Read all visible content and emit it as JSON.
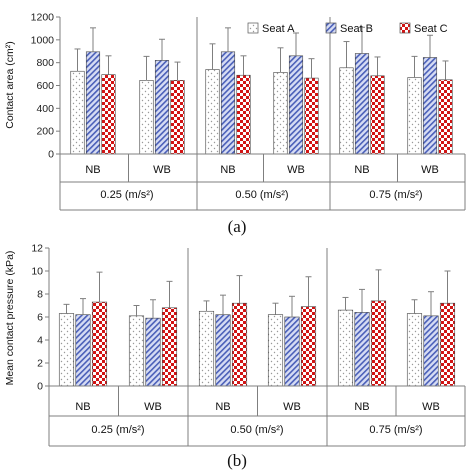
{
  "colors": {
    "seatA_fill": "#ffffff",
    "seatA_dots": "#999999",
    "seatB_fill": "#d6dcf4",
    "seatB_stripe": "#4a5fb8",
    "seatC_fill": "#ffffff",
    "seatC_check": "#d21414",
    "axis": "#7f7f7f",
    "error": "#7f7f7f"
  },
  "chart_data": [
    {
      "type": "bar",
      "panel_label": "(a)",
      "ylabel": "Contact area (cm²)",
      "ylim": [
        0,
        1200
      ],
      "yticks": [
        0,
        200,
        400,
        600,
        800,
        1000,
        1200
      ],
      "legend": [
        "Seat A",
        "Seat B",
        "Seat C"
      ],
      "legend_position": "top-right",
      "groups": [
        "0.25 (m/s²)",
        "0.50 (m/s²)",
        "0.75 (m/s²)"
      ],
      "categories": [
        "NB",
        "WB",
        "NB",
        "WB",
        "NB",
        "WB"
      ],
      "series": [
        {
          "name": "Seat A",
          "values": [
            725,
            645,
            740,
            715,
            755,
            670
          ],
          "errors": [
            195,
            210,
            225,
            215,
            230,
            185
          ]
        },
        {
          "name": "Seat B",
          "values": [
            895,
            820,
            895,
            860,
            880,
            845
          ],
          "errors": [
            210,
            185,
            210,
            200,
            230,
            195
          ]
        },
        {
          "name": "Seat C",
          "values": [
            695,
            645,
            690,
            665,
            685,
            650
          ],
          "errors": [
            165,
            160,
            170,
            170,
            165,
            165
          ]
        }
      ]
    },
    {
      "type": "bar",
      "panel_label": "(b)",
      "ylabel": "Mean contact pressure (kPa)",
      "ylim": [
        0,
        12
      ],
      "yticks": [
        0,
        2,
        4,
        6,
        8,
        10,
        12
      ],
      "groups": [
        "0.25 (m/s²)",
        "0.50 (m/s²)",
        "0.75 (m/s²)"
      ],
      "categories": [
        "NB",
        "WB",
        "NB",
        "WB",
        "NB",
        "WB"
      ],
      "series": [
        {
          "name": "Seat A",
          "values": [
            6.3,
            6.1,
            6.5,
            6.2,
            6.6,
            6.3
          ],
          "errors": [
            0.8,
            0.9,
            0.9,
            1.0,
            1.1,
            1.2
          ]
        },
        {
          "name": "Seat B",
          "values": [
            6.2,
            5.9,
            6.2,
            6.0,
            6.4,
            6.1
          ],
          "errors": [
            1.4,
            1.6,
            1.7,
            1.8,
            2.0,
            2.1
          ]
        },
        {
          "name": "Seat C",
          "values": [
            7.3,
            6.8,
            7.2,
            6.9,
            7.4,
            7.2
          ],
          "errors": [
            2.6,
            2.3,
            2.4,
            2.6,
            2.7,
            2.8
          ]
        }
      ]
    }
  ]
}
